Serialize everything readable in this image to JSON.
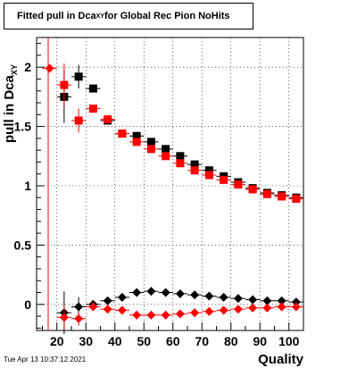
{
  "title": {
    "main": "Fitted pull in Dca",
    "sub": "XY",
    "suffix": " for Global Rec Pion NoHits"
  },
  "timestamp": "Tue Apr 13 10:37:12 2021",
  "chart_data": {
    "type": "scatter",
    "title": "Fitted pull in Dca_XY for Global Rec Pion NoHits",
    "xlabel": "Quality",
    "ylabel": "pull in Dca_XY",
    "xlim": [
      13,
      105
    ],
    "ylim": [
      -0.22,
      2.25
    ],
    "xticks": [
      "20",
      "30",
      "40",
      "50",
      "60",
      "70",
      "80",
      "90",
      "100"
    ],
    "yticks": [
      "0",
      "0.5",
      "1",
      "1.5",
      "2"
    ],
    "grid": true,
    "vline_x": 17,
    "series": [
      {
        "marker": "square",
        "color": "#000000",
        "points": [
          {
            "x": 22.5,
            "y": 1.75,
            "ey": 0.22
          },
          {
            "x": 27.5,
            "y": 1.92,
            "ey": 0.1
          },
          {
            "x": 32.5,
            "y": 1.82,
            "ey": 0.03
          },
          {
            "x": 37.5,
            "y": 1.55,
            "ey": 0.02
          },
          {
            "x": 42.5,
            "y": 1.44,
            "ey": 0.02
          },
          {
            "x": 47.5,
            "y": 1.42,
            "ey": 0.02
          },
          {
            "x": 52.5,
            "y": 1.37,
            "ey": 0.02
          },
          {
            "x": 57.5,
            "y": 1.31,
            "ey": 0.02
          },
          {
            "x": 62.5,
            "y": 1.25,
            "ey": 0.02
          },
          {
            "x": 67.5,
            "y": 1.18,
            "ey": 0.02
          },
          {
            "x": 72.5,
            "y": 1.13,
            "ey": 0.02
          },
          {
            "x": 77.5,
            "y": 1.08,
            "ey": 0.02
          },
          {
            "x": 82.5,
            "y": 1.03,
            "ey": 0.02
          },
          {
            "x": 87.5,
            "y": 0.98,
            "ey": 0.02
          },
          {
            "x": 92.5,
            "y": 0.94,
            "ey": 0.02
          },
          {
            "x": 97.5,
            "y": 0.92,
            "ey": 0.02
          },
          {
            "x": 102.5,
            "y": 0.9,
            "ey": 0.02
          }
        ]
      },
      {
        "marker": "square",
        "color": "#ff0000",
        "points": [
          {
            "x": 22.5,
            "y": 1.85,
            "ey": 0.18
          },
          {
            "x": 27.5,
            "y": 1.55,
            "ey": 0.1
          },
          {
            "x": 32.5,
            "y": 1.65,
            "ey": 0.03
          },
          {
            "x": 37.5,
            "y": 1.56,
            "ey": 0.02
          },
          {
            "x": 42.5,
            "y": 1.44,
            "ey": 0.02
          },
          {
            "x": 47.5,
            "y": 1.37,
            "ey": 0.02
          },
          {
            "x": 52.5,
            "y": 1.31,
            "ey": 0.02
          },
          {
            "x": 57.5,
            "y": 1.25,
            "ey": 0.02
          },
          {
            "x": 62.5,
            "y": 1.19,
            "ey": 0.02
          },
          {
            "x": 67.5,
            "y": 1.13,
            "ey": 0.02
          },
          {
            "x": 72.5,
            "y": 1.09,
            "ey": 0.02
          },
          {
            "x": 77.5,
            "y": 1.05,
            "ey": 0.02
          },
          {
            "x": 82.5,
            "y": 1.01,
            "ey": 0.02
          },
          {
            "x": 87.5,
            "y": 0.97,
            "ey": 0.02
          },
          {
            "x": 92.5,
            "y": 0.93,
            "ey": 0.02
          },
          {
            "x": 97.5,
            "y": 0.91,
            "ey": 0.02
          },
          {
            "x": 102.5,
            "y": 0.89,
            "ey": 0.02
          }
        ]
      },
      {
        "marker": "diamond",
        "color": "#000000",
        "points": [
          {
            "x": 22.5,
            "y": -0.07,
            "ey": 0.18
          },
          {
            "x": 27.5,
            "y": -0.02,
            "ey": 0.08
          },
          {
            "x": 32.5,
            "y": 0.0,
            "ey": 0.03
          },
          {
            "x": 37.5,
            "y": 0.03,
            "ey": 0.02
          },
          {
            "x": 42.5,
            "y": 0.06,
            "ey": 0.02
          },
          {
            "x": 47.5,
            "y": 0.1,
            "ey": 0.02
          },
          {
            "x": 52.5,
            "y": 0.11,
            "ey": 0.02
          },
          {
            "x": 57.5,
            "y": 0.1,
            "ey": 0.02
          },
          {
            "x": 62.5,
            "y": 0.09,
            "ey": 0.02
          },
          {
            "x": 67.5,
            "y": 0.08,
            "ey": 0.02
          },
          {
            "x": 72.5,
            "y": 0.07,
            "ey": 0.02
          },
          {
            "x": 77.5,
            "y": 0.06,
            "ey": 0.02
          },
          {
            "x": 82.5,
            "y": 0.05,
            "ey": 0.02
          },
          {
            "x": 87.5,
            "y": 0.04,
            "ey": 0.02
          },
          {
            "x": 92.5,
            "y": 0.03,
            "ey": 0.02
          },
          {
            "x": 97.5,
            "y": 0.03,
            "ey": 0.02
          },
          {
            "x": 102.5,
            "y": 0.02,
            "ey": 0.02
          }
        ]
      },
      {
        "marker": "diamond",
        "color": "#ff0000",
        "points": [
          {
            "x": 17.5,
            "y": 1.99,
            "ey": 0.0
          },
          {
            "x": 22.5,
            "y": -0.11,
            "ey": 0.1
          },
          {
            "x": 27.5,
            "y": -0.12,
            "ey": 0.06
          },
          {
            "x": 32.5,
            "y": -0.02,
            "ey": 0.03
          },
          {
            "x": 37.5,
            "y": -0.04,
            "ey": 0.02
          },
          {
            "x": 42.5,
            "y": -0.05,
            "ey": 0.02
          },
          {
            "x": 47.5,
            "y": -0.09,
            "ey": 0.02
          },
          {
            "x": 52.5,
            "y": -0.09,
            "ey": 0.02
          },
          {
            "x": 57.5,
            "y": -0.09,
            "ey": 0.02
          },
          {
            "x": 62.5,
            "y": -0.08,
            "ey": 0.02
          },
          {
            "x": 67.5,
            "y": -0.07,
            "ey": 0.02
          },
          {
            "x": 72.5,
            "y": -0.06,
            "ey": 0.02
          },
          {
            "x": 77.5,
            "y": -0.05,
            "ey": 0.02
          },
          {
            "x": 82.5,
            "y": -0.04,
            "ey": 0.02
          },
          {
            "x": 87.5,
            "y": -0.03,
            "ey": 0.02
          },
          {
            "x": 92.5,
            "y": -0.03,
            "ey": 0.02
          },
          {
            "x": 97.5,
            "y": -0.02,
            "ey": 0.02
          },
          {
            "x": 102.5,
            "y": -0.02,
            "ey": 0.02
          }
        ]
      }
    ]
  }
}
